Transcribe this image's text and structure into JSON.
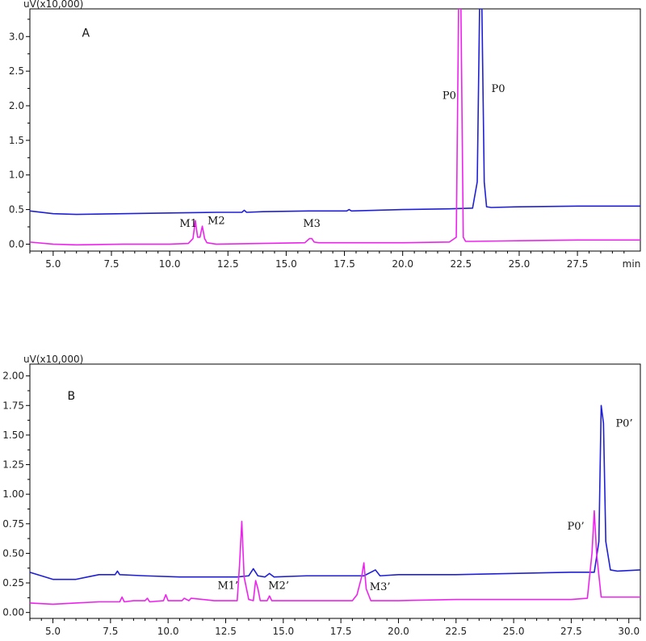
{
  "colors": {
    "blue_trace": "#1f1fd6",
    "magenta_trace": "#ee22ee",
    "axis": "#000000"
  },
  "chart_data": [
    {
      "type": "line",
      "panel": "A",
      "ylabel": "uV(x10,000)",
      "xunit": "min",
      "xlim": [
        4.0,
        30.2
      ],
      "ylim": [
        -0.1,
        3.4
      ],
      "xticks": [
        5.0,
        7.5,
        10.0,
        12.5,
        15.0,
        17.5,
        20.0,
        22.5,
        25.0,
        27.5
      ],
      "xtick_labels": [
        "5.0",
        "7.5",
        "10.0",
        "12.5",
        "15.0",
        "17.5",
        "20.0",
        "22.5",
        "25.0",
        "27.5"
      ],
      "yticks": [
        0.0,
        0.5,
        1.0,
        1.5,
        2.0,
        2.5,
        3.0
      ],
      "ytick_labels": [
        "0.0",
        "0.5",
        "1.0",
        "1.5",
        "2.0",
        "2.5",
        "3.0"
      ],
      "series": [
        {
          "color": "blue",
          "x": [
            4.0,
            5.0,
            6.0,
            8.0,
            10.0,
            12.0,
            13.1,
            13.2,
            13.3,
            14.0,
            16.0,
            17.6,
            17.7,
            17.8,
            20.0,
            22.0,
            23.0,
            23.2,
            23.3,
            23.4,
            23.5,
            23.6,
            23.8,
            25.0,
            27.5,
            30.2
          ],
          "values": [
            0.48,
            0.44,
            0.43,
            0.44,
            0.45,
            0.46,
            0.46,
            0.49,
            0.46,
            0.47,
            0.48,
            0.48,
            0.5,
            0.48,
            0.5,
            0.51,
            0.52,
            0.9,
            3.4,
            3.4,
            0.9,
            0.54,
            0.53,
            0.54,
            0.55,
            0.55
          ]
        },
        {
          "color": "magenta",
          "x": [
            4.0,
            5.0,
            6.0,
            8.0,
            10.0,
            10.8,
            11.0,
            11.1,
            11.2,
            11.3,
            11.4,
            11.5,
            11.6,
            12.0,
            15.8,
            16.0,
            16.1,
            16.2,
            16.4,
            20.0,
            22.0,
            22.3,
            22.4,
            22.5,
            22.6,
            22.7,
            23.0,
            25.0,
            27.5,
            30.2
          ],
          "values": [
            0.03,
            0.0,
            -0.01,
            0.0,
            0.0,
            0.01,
            0.08,
            0.34,
            0.1,
            0.1,
            0.26,
            0.08,
            0.02,
            0.0,
            0.02,
            0.08,
            0.08,
            0.03,
            0.02,
            0.02,
            0.03,
            0.1,
            3.4,
            3.4,
            0.1,
            0.04,
            0.04,
            0.05,
            0.06,
            0.06
          ]
        }
      ],
      "annotations": [
        {
          "text": "A",
          "x": 6.4,
          "y": 3.0
        },
        {
          "text": "M1",
          "x": 10.8,
          "y": 0.25
        },
        {
          "text": "M2",
          "x": 12.0,
          "y": 0.29
        },
        {
          "text": "M3",
          "x": 16.1,
          "y": 0.25
        },
        {
          "text": "P0",
          "x": 22.0,
          "y": 2.1
        },
        {
          "text": "P0",
          "x": 24.1,
          "y": 2.2
        }
      ]
    },
    {
      "type": "line",
      "panel": "B",
      "ylabel": "uV(x10,000)",
      "xunit": "min",
      "xlim": [
        4.0,
        30.5
      ],
      "ylim": [
        -0.05,
        2.1
      ],
      "xticks": [
        5.0,
        7.5,
        10.0,
        12.5,
        15.0,
        17.5,
        20.0,
        22.5,
        25.0,
        27.5,
        30.0
      ],
      "xtick_labels": [
        "5.0",
        "7.5",
        "10.0",
        "12.5",
        "15.0",
        "17.5",
        "20.0",
        "22.5",
        "25.0",
        "27.5",
        "30.0"
      ],
      "yticks": [
        0.0,
        0.25,
        0.5,
        0.75,
        1.0,
        1.25,
        1.5,
        1.75,
        2.0
      ],
      "ytick_labels": [
        "0.00",
        "0.25",
        "0.50",
        "0.75",
        "1.00",
        "1.25",
        "1.50",
        "1.75",
        "2.00"
      ],
      "series": [
        {
          "color": "blue",
          "x": [
            4.0,
            4.5,
            5.0,
            6.0,
            6.5,
            7.0,
            7.7,
            7.8,
            7.9,
            9.0,
            10.5,
            12.0,
            13.0,
            13.5,
            13.7,
            13.9,
            14.2,
            14.4,
            14.6,
            16.0,
            18.5,
            18.9,
            19.0,
            19.2,
            20.0,
            22.5,
            25.0,
            27.5,
            28.5,
            28.7,
            28.8,
            28.9,
            29.0,
            29.2,
            29.5,
            30.5
          ],
          "values": [
            0.34,
            0.31,
            0.28,
            0.28,
            0.3,
            0.32,
            0.32,
            0.35,
            0.32,
            0.31,
            0.3,
            0.3,
            0.3,
            0.31,
            0.37,
            0.31,
            0.3,
            0.33,
            0.3,
            0.31,
            0.31,
            0.35,
            0.36,
            0.31,
            0.32,
            0.32,
            0.33,
            0.34,
            0.34,
            0.6,
            1.75,
            1.6,
            0.6,
            0.36,
            0.35,
            0.36
          ]
        },
        {
          "color": "magenta",
          "x": [
            4.0,
            5.0,
            6.0,
            7.0,
            7.9,
            8.0,
            8.1,
            8.5,
            9.0,
            9.1,
            9.2,
            9.8,
            9.9,
            10.0,
            10.6,
            10.7,
            10.9,
            11.0,
            12.0,
            13.0,
            13.1,
            13.2,
            13.3,
            13.5,
            13.7,
            13.8,
            13.9,
            14.0,
            14.3,
            14.4,
            14.5,
            16.0,
            18.0,
            18.2,
            18.4,
            18.5,
            18.6,
            18.8,
            20.0,
            22.5,
            25.0,
            27.5,
            28.2,
            28.4,
            28.5,
            28.6,
            28.8,
            30.5
          ],
          "values": [
            0.08,
            0.07,
            0.08,
            0.09,
            0.09,
            0.13,
            0.09,
            0.1,
            0.1,
            0.12,
            0.09,
            0.1,
            0.15,
            0.1,
            0.1,
            0.12,
            0.1,
            0.12,
            0.1,
            0.1,
            0.4,
            0.77,
            0.3,
            0.11,
            0.1,
            0.27,
            0.2,
            0.1,
            0.1,
            0.14,
            0.1,
            0.1,
            0.1,
            0.15,
            0.3,
            0.42,
            0.2,
            0.1,
            0.1,
            0.11,
            0.11,
            0.11,
            0.12,
            0.5,
            0.86,
            0.5,
            0.13,
            0.13
          ]
        }
      ],
      "annotations": [
        {
          "text": "B",
          "x": 5.8,
          "y": 1.8
        },
        {
          "text": "M1’",
          "x": 12.6,
          "y": 0.2
        },
        {
          "text": "M2’",
          "x": 14.8,
          "y": 0.2
        },
        {
          "text": "M3’",
          "x": 19.2,
          "y": 0.19
        },
        {
          "text": "P0’",
          "x": 27.7,
          "y": 0.7
        },
        {
          "text": "P0’",
          "x": 29.8,
          "y": 1.57
        }
      ]
    }
  ]
}
